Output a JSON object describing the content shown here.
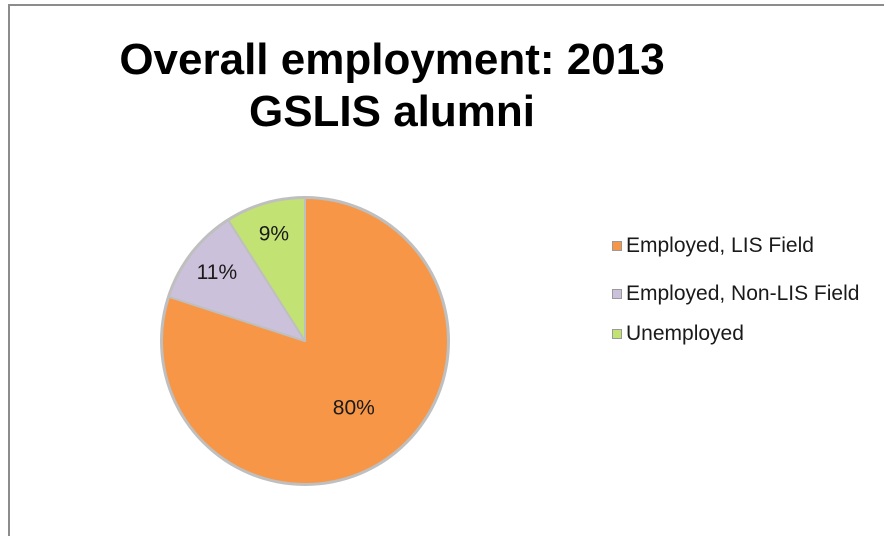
{
  "chart_data": {
    "type": "pie",
    "title_lines": [
      "Overall employment: 2013",
      "GSLIS alumni"
    ],
    "categories": [
      "Employed, LIS Field",
      "Employed, Non-LIS Field",
      "Unemployed"
    ],
    "values": [
      80,
      11,
      9
    ],
    "data_labels": [
      "80%",
      "11%",
      "9%"
    ],
    "colors": [
      "#f79646",
      "#ccc1da",
      "#c3e274"
    ],
    "legend_position": "right",
    "start_angle": "12 o'clock, clockwise"
  },
  "legend": {
    "items": [
      {
        "label": "Employed, LIS Field",
        "color": "#f79646"
      },
      {
        "label": "Employed, Non-LIS Field",
        "color": "#ccc1da"
      },
      {
        "label": "Unemployed",
        "color": "#c3e274"
      }
    ]
  }
}
